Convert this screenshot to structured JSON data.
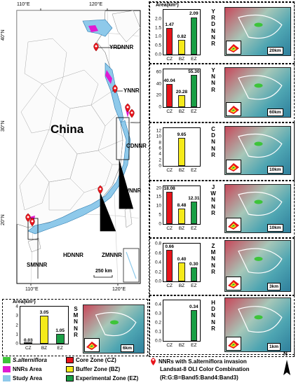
{
  "map": {
    "country_label": "China",
    "lon_labels": [
      "110°E",
      "120°E"
    ],
    "lat_labels": [
      "40°N",
      "30°N",
      "20°N"
    ],
    "scale_label": "250 km",
    "reserve_labels": [
      "YRDNNR",
      "YNNR",
      "CDNNR",
      "JWNNR",
      "ZMNNR",
      "HDNNR",
      "SMNNR"
    ]
  },
  "chart_common": {
    "y_axis_label": "Area(km²)",
    "categories": [
      "CZ",
      "BZ",
      "EZ"
    ],
    "zone_colors": {
      "CZ": "#e8141b",
      "BZ": "#f5ea1a",
      "EZ": "#1a9f45"
    }
  },
  "chart_data": [
    {
      "type": "bar",
      "reserve": "YRDNNR",
      "categories": [
        "CZ",
        "BZ",
        "EZ"
      ],
      "values": [
        1.47,
        0.82,
        2.09
      ],
      "value_labels": [
        "1.47",
        "0.82",
        "2.09"
      ],
      "ylim": [
        0,
        2.5
      ],
      "yticks": [
        "0.0",
        "0.5",
        "1.0",
        "1.5",
        "2.0"
      ],
      "scale": "20km"
    },
    {
      "type": "bar",
      "reserve": "YNNR",
      "categories": [
        "CZ",
        "BZ",
        "EZ"
      ],
      "values": [
        40.04,
        20.28,
        55.3
      ],
      "value_labels": [
        "40.04",
        "20.28",
        "55.30"
      ],
      "ylim": [
        0,
        65
      ],
      "yticks": [
        "0",
        "20",
        "40",
        "60"
      ],
      "scale": "60km"
    },
    {
      "type": "bar",
      "reserve": "CDNNR",
      "categories": [
        "CZ",
        "BZ",
        "EZ"
      ],
      "values": [
        0,
        9.65,
        0
      ],
      "value_labels": [
        "",
        "9.65",
        ""
      ],
      "ylim": [
        0,
        13
      ],
      "yticks": [
        "0",
        "2",
        "4",
        "6",
        "8",
        "10",
        "12"
      ],
      "scale": "10km"
    },
    {
      "type": "bar",
      "reserve": "JWNNR",
      "categories": [
        "CZ",
        "BZ",
        "EZ"
      ],
      "values": [
        18.08,
        8.48,
        12.31
      ],
      "value_labels": [
        "18.08",
        "8.48",
        "12.31"
      ],
      "ylim": [
        0,
        21
      ],
      "yticks": [
        "0",
        "5",
        "10",
        "15",
        "20"
      ],
      "scale": "10km"
    },
    {
      "type": "bar",
      "reserve": "ZMNNR",
      "categories": [
        "CZ",
        "BZ",
        "EZ"
      ],
      "values": [
        0.66,
        0.4,
        0.3
      ],
      "value_labels": [
        "0.66",
        "0.40",
        "0.30"
      ],
      "ylim": [
        0,
        0.8
      ],
      "yticks": [
        "0.0",
        "0.2",
        "0.4",
        "0.6",
        "0.8"
      ],
      "scale": "3km"
    },
    {
      "type": "bar",
      "reserve": "HDNNR",
      "categories": [
        "CZ",
        "BZ",
        "EZ"
      ],
      "values": [
        0,
        0,
        0.34
      ],
      "value_labels": [
        "",
        "",
        "0.34"
      ],
      "ylim": [
        0,
        0.45
      ],
      "yticks": [
        "0.0",
        "0.1",
        "0.2",
        "0.3",
        "0.4"
      ],
      "scale": "1km"
    },
    {
      "type": "bar",
      "reserve": "SMNNR",
      "categories": [
        "CZ",
        "BZ",
        "EZ"
      ],
      "values": [
        0.03,
        3.05,
        1.05
      ],
      "value_labels": [
        "0.03",
        "3.05",
        "1.05"
      ],
      "ylim": [
        0,
        4
      ],
      "yticks": [
        "0",
        "1",
        "2",
        "3",
        "4"
      ],
      "scale": "6km"
    }
  ],
  "legend": {
    "s_alterniflora": "S.alterniflora",
    "nnrs_area": "NNRs Area",
    "study_area": "Study Area",
    "core_zone": "Core Zone (CZ)",
    "buffer_zone": "Buffer Zone (BZ)",
    "experimental_zone": "Experimental Zone (EZ)",
    "nnr_invasion": "NNRs with S.alterniflora invasion",
    "landsat_line1": "Landsat-8 OLI Color Combination",
    "landsat_line2": "(R:G:B=Band5:Band4:Band3)",
    "north": "N",
    "colors": {
      "green": "#3ec43a",
      "magenta": "#e01ad2",
      "study": "#8ec9ea",
      "pin": "#e8141b"
    }
  }
}
